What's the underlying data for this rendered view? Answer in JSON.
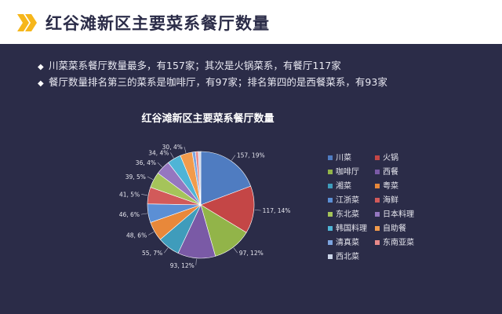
{
  "header": {
    "title": "红谷滩新区主要菜系餐厅数量",
    "chevron_color": "#f6b61b"
  },
  "bullets": [
    {
      "marker": "◆",
      "text": "川菜菜系餐厅数量最多，有157家；其次是火锅菜系，有餐厅117家"
    },
    {
      "marker": "◆",
      "text": "餐厅数量排名第三的菜系是咖啡厅，有97家；排名第四的是西餐菜系，有93家"
    }
  ],
  "chart_data": {
    "type": "pie",
    "title": "红谷滩新区主要菜系餐厅数量",
    "legend_position": "right",
    "series": [
      {
        "name": "川菜",
        "value": 157,
        "label": "157, 19%",
        "color": "#4f7cc1"
      },
      {
        "name": "火锅",
        "value": 117,
        "label": "117, 14%",
        "color": "#c44646"
      },
      {
        "name": "咖啡厅",
        "value": 97,
        "label": "97, 12%",
        "color": "#92b449"
      },
      {
        "name": "西餐",
        "value": 93,
        "label": "93, 12%",
        "color": "#7a5aa6"
      },
      {
        "name": "湘菜",
        "value": 55,
        "label": "55, 7%",
        "color": "#3f9cbb"
      },
      {
        "name": "粤菜",
        "value": 48,
        "label": "48, 6%",
        "color": "#e8883a"
      },
      {
        "name": "江浙菜",
        "value": 46,
        "label": "46, 6%",
        "color": "#5b8fd5"
      },
      {
        "name": "海鲜",
        "value": 41,
        "label": "41, 5%",
        "color": "#d25a5a"
      },
      {
        "name": "东北菜",
        "value": 39,
        "label": "39, 5%",
        "color": "#a5c45a"
      },
      {
        "name": "日本料理",
        "value": 36,
        "label": "36, 4%",
        "color": "#9577c0"
      },
      {
        "name": "韩国料理",
        "value": 34,
        "label": "34, 4%",
        "color": "#4fb4d6"
      },
      {
        "name": "自助餐",
        "value": 30,
        "label": "30, 4%",
        "color": "#f29b4c"
      },
      {
        "name": "清真菜",
        "value": 8,
        "label": "",
        "color": "#7da5e0"
      },
      {
        "name": "东南亚菜",
        "value": 7,
        "label": "",
        "color": "#e88a8a"
      },
      {
        "name": "西北菜",
        "value": 6,
        "label": "",
        "color": "#cbd5e8"
      }
    ]
  }
}
